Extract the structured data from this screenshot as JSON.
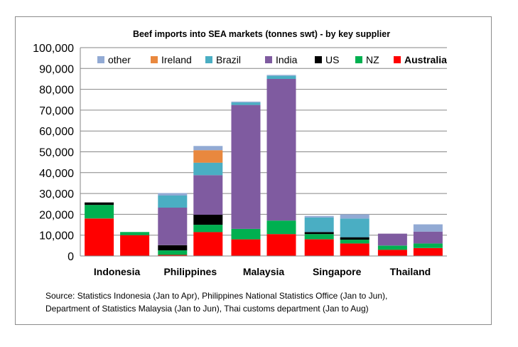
{
  "chart_data": {
    "type": "bar",
    "stacked": true,
    "title": "Beef imports into SEA markets (tonnes swt) - by key supplier",
    "groups": [
      "Indonesia",
      "Philippines",
      "Malaysia",
      "Singapore",
      "Thailand"
    ],
    "bars_per_group": 2,
    "ylim": [
      0,
      100000
    ],
    "yticks": [
      "0",
      "10,000",
      "20,000",
      "30,000",
      "40,000",
      "50,000",
      "60,000",
      "70,000",
      "80,000",
      "90,000",
      "100,000"
    ],
    "grid": "horizontal",
    "legend": {
      "position": "top",
      "order": [
        "other",
        "Ireland",
        "Brazil",
        "India",
        "US",
        "NZ",
        "Australia"
      ]
    },
    "series": [
      {
        "name": "Australia",
        "color": "#ff0000",
        "values": [
          18000,
          10000,
          500,
          11500,
          8000,
          10500,
          8000,
          6000,
          3000,
          3800
        ]
      },
      {
        "name": "NZ",
        "color": "#00b050",
        "values": [
          6500,
          1500,
          2200,
          3500,
          5000,
          6500,
          2500,
          1800,
          2000,
          2200
        ]
      },
      {
        "name": "US",
        "color": "#000000",
        "values": [
          1200,
          0,
          2500,
          4800,
          0,
          0,
          1000,
          1200,
          0,
          0
        ]
      },
      {
        "name": "India",
        "color": "#7f5ba0",
        "values": [
          0,
          0,
          18000,
          19000,
          59500,
          68000,
          0,
          0,
          5700,
          5700
        ]
      },
      {
        "name": "Brazil",
        "color": "#4aaec3",
        "values": [
          0,
          0,
          5800,
          6000,
          1200,
          1500,
          7000,
          9000,
          0,
          0
        ]
      },
      {
        "name": "Ireland",
        "color": "#e9883e",
        "values": [
          0,
          0,
          0,
          6000,
          0,
          0,
          0,
          0,
          0,
          0
        ]
      },
      {
        "name": "other",
        "color": "#92aad4",
        "values": [
          0,
          0,
          1200,
          2000,
          400,
          400,
          700,
          2000,
          0,
          3500
        ]
      }
    ]
  },
  "source": {
    "line1": "Source: Statistics Indonesia (Jan to Apr),  Philippines National Statistics Office (Jan to Jun),",
    "line2": "Department of Statistics Malaysia (Jan to Jun), Thai customs department (Jan to Aug)"
  }
}
